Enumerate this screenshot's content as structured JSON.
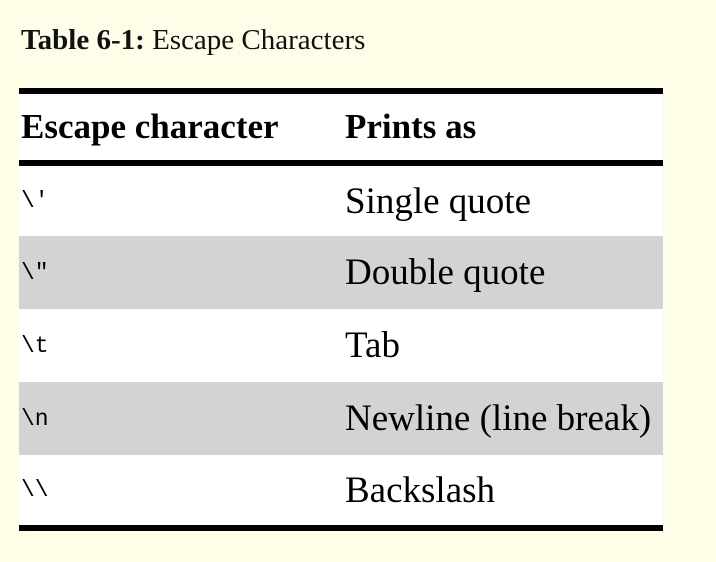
{
  "caption": {
    "label": "Table 6-1:",
    "title": "Escape Characters"
  },
  "table": {
    "headers": [
      "Escape character",
      "Prints as"
    ],
    "rows": [
      {
        "escape": "\\'",
        "prints_as": "Single quote"
      },
      {
        "escape": "\\\"",
        "prints_as": "Double quote"
      },
      {
        "escape": "\\t",
        "prints_as": "Tab"
      },
      {
        "escape": "\\n",
        "prints_as": "Newline (line break)"
      },
      {
        "escape": "\\\\",
        "prints_as": "Backslash"
      }
    ]
  },
  "colors": {
    "page_background": "#fdfde8",
    "row_shade": "#d3d3d3",
    "rule": "#000000"
  }
}
